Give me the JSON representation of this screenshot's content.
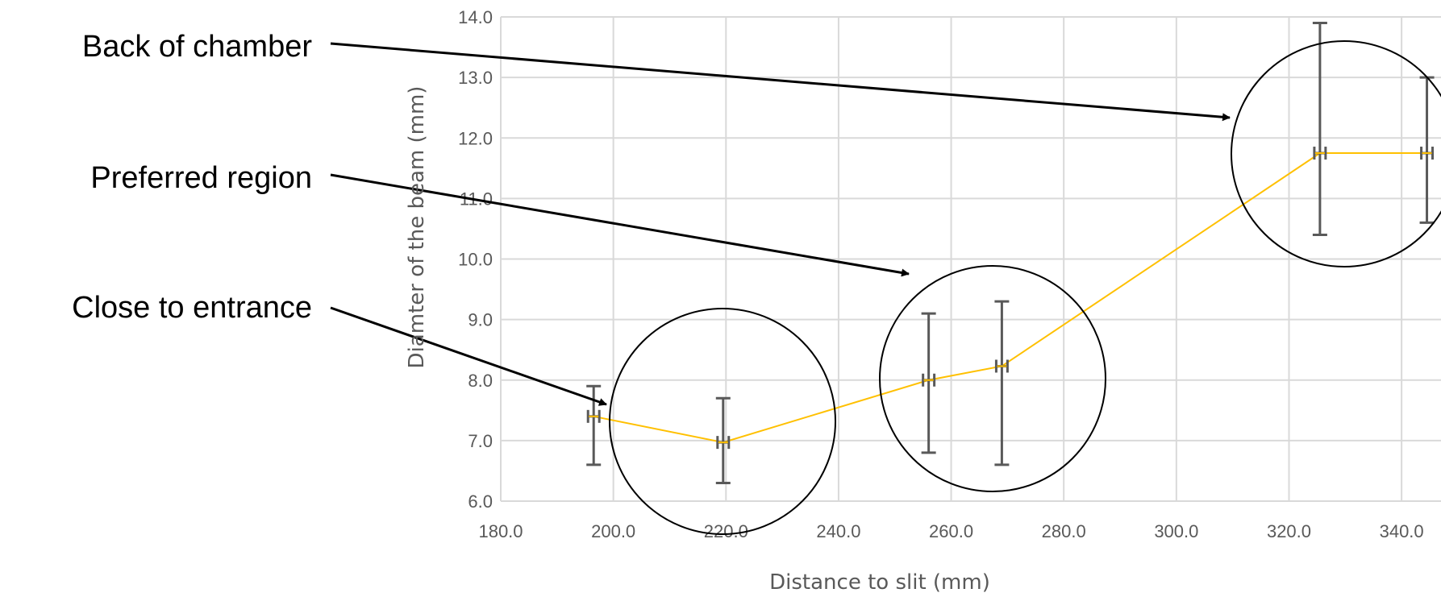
{
  "chart_data": {
    "type": "line",
    "title": "",
    "xlabel": "Distance to slit (mm)",
    "ylabel": "Diamter of the beam (mm)",
    "xlim": [
      180,
      347
    ],
    "ylim": [
      6,
      14
    ],
    "x_ticks": [
      "180.0",
      "200.0",
      "220.0",
      "240.0",
      "260.0",
      "280.0",
      "300.0",
      "320.0",
      "340.0"
    ],
    "x_tick_values": [
      180,
      200,
      220,
      240,
      260,
      280,
      300,
      320,
      340
    ],
    "y_ticks": [
      "6.0",
      "7.0",
      "8.0",
      "9.0",
      "10.0",
      "11.0",
      "12.0",
      "13.0",
      "14.0"
    ],
    "y_tick_values": [
      6,
      7,
      8,
      9,
      10,
      11,
      12,
      13,
      14
    ],
    "grid": true,
    "series": [
      {
        "color": "#FFC000",
        "points": [
          {
            "x": 196.5,
            "y": 7.4,
            "y_err_low": 6.6,
            "y_err_high": 7.9,
            "x_err": 1
          },
          {
            "x": 219.5,
            "y": 6.97,
            "y_err_low": 6.3,
            "y_err_high": 7.7,
            "x_err": 1
          },
          {
            "x": 256.0,
            "y": 8.0,
            "y_err_low": 6.8,
            "y_err_high": 9.1,
            "x_err": 1
          },
          {
            "x": 269.0,
            "y": 8.23,
            "y_err_low": 6.6,
            "y_err_high": 9.3,
            "x_err": 1
          },
          {
            "x": 325.5,
            "y": 11.75,
            "y_err_low": 10.4,
            "y_err_high": 13.9,
            "x_err": 1
          },
          {
            "x": 344.5,
            "y": 11.75,
            "y_err_low": 10.6,
            "y_err_high": 13.0,
            "x_err": 1
          }
        ]
      }
    ],
    "error_bar_color": "#595959",
    "grid_color": "#D9D9D9",
    "annotations": [
      {
        "text": "Back of chamber",
        "arrow_to": {
          "x": 321,
          "y": 12.3
        }
      },
      {
        "text": "Preferred region",
        "arrow_to": {
          "x": 247,
          "y": 10.2
        }
      },
      {
        "text": "Close to entrance",
        "arrow_to": {
          "x": 191.5,
          "y": 7.6
        }
      }
    ],
    "circled_groups": [
      {
        "label": "Close to entrance",
        "center": {
          "x": 208,
          "y": 7.3
        }
      },
      {
        "label": "Preferred region",
        "center": {
          "x": 262.5,
          "y": 8.0
        }
      },
      {
        "label": "Back of chamber",
        "center": {
          "x": 332,
          "y": 11.75
        }
      }
    ]
  }
}
